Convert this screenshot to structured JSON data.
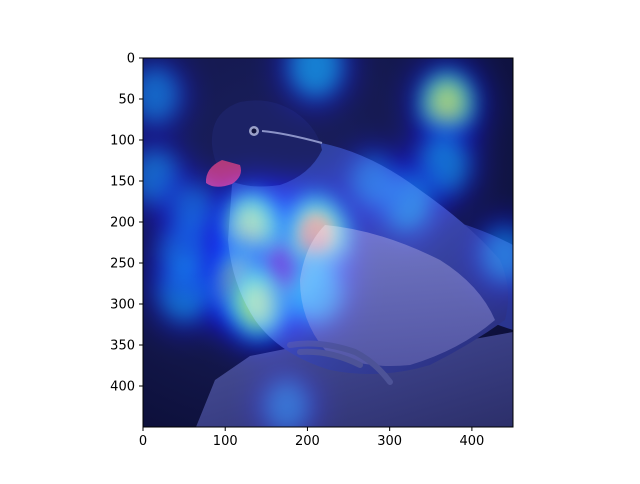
{
  "chart_data": {
    "type": "heatmap",
    "title": "",
    "xlabel": "",
    "ylabel": "",
    "image_content": "bird-photo-with-attention-heatmap-overlay",
    "image_size": [
      450,
      450
    ],
    "xlim": [
      0,
      450
    ],
    "ylim": [
      450,
      0
    ],
    "x_ticks": [
      0,
      100,
      200,
      300,
      400
    ],
    "y_ticks": [
      0,
      50,
      100,
      150,
      200,
      250,
      300,
      350,
      400
    ],
    "colormap": "jet",
    "colormap_stops": [
      "#00007f",
      "#0000ff",
      "#00ffff",
      "#ffff00",
      "#ff7f00",
      "#ff0000",
      "#7f0000"
    ],
    "hotspots": [
      {
        "x": 150,
        "y": 240,
        "intensity": 1.0
      },
      {
        "x": 170,
        "y": 255,
        "intensity": 0.85
      },
      {
        "x": 210,
        "y": 215,
        "intensity": 0.65
      },
      {
        "x": 130,
        "y": 205,
        "intensity": 0.5
      },
      {
        "x": 115,
        "y": 275,
        "intensity": 0.45
      },
      {
        "x": 140,
        "y": 300,
        "intensity": 0.5
      },
      {
        "x": 210,
        "y": 285,
        "intensity": 0.4
      },
      {
        "x": 50,
        "y": 285,
        "intensity": 0.35
      },
      {
        "x": 50,
        "y": 235,
        "intensity": 0.3
      },
      {
        "x": 15,
        "y": 145,
        "intensity": 0.3
      },
      {
        "x": 15,
        "y": 45,
        "intensity": 0.3
      },
      {
        "x": 210,
        "y": 10,
        "intensity": 0.4
      },
      {
        "x": 370,
        "y": 55,
        "intensity": 0.45
      },
      {
        "x": 365,
        "y": 130,
        "intensity": 0.35
      },
      {
        "x": 320,
        "y": 175,
        "intensity": 0.35
      },
      {
        "x": 440,
        "y": 240,
        "intensity": 0.3
      },
      {
        "x": 280,
        "y": 150,
        "intensity": 0.25
      },
      {
        "x": 175,
        "y": 425,
        "intensity": 0.25
      },
      {
        "x": 60,
        "y": 185,
        "intensity": 0.25
      }
    ],
    "grid": false,
    "legend": null
  }
}
